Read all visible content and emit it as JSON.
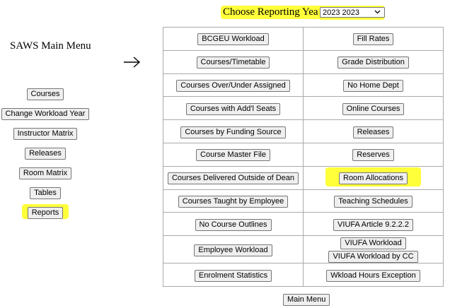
{
  "header": {
    "title": "Choose Reporting Year :",
    "year_select": "2023 2023"
  },
  "sidebar": {
    "title": "SAWS Main Menu",
    "buttons": [
      "Courses",
      "Change Workload Year",
      "Instructor Matrix",
      "Releases",
      "Room Matrix",
      "Tables",
      "Reports"
    ]
  },
  "table": {
    "rows": [
      [
        [
          "BCGEU Workload"
        ],
        [
          "Fill Rates"
        ]
      ],
      [
        [
          "Courses/Timetable"
        ],
        [
          "Grade Distribution"
        ]
      ],
      [
        [
          "Courses Over/Under Assigned"
        ],
        [
          "No Home Dept"
        ]
      ],
      [
        [
          "Courses with Add'l Seats"
        ],
        [
          "Online Courses"
        ]
      ],
      [
        [
          "Courses by Funding Source"
        ],
        [
          "Releases"
        ]
      ],
      [
        [
          "Course Master File"
        ],
        [
          "Reserves"
        ]
      ],
      [
        [
          "Courses Delivered Outside of Dean"
        ],
        [
          "Room Allocations"
        ]
      ],
      [
        [
          "Courses Taught by Employee"
        ],
        [
          "Teaching Schedules"
        ]
      ],
      [
        [
          "No Course Outlines"
        ],
        [
          "VIUFA Article 9.2.2.2"
        ]
      ],
      [
        [
          "Employee Workload"
        ],
        [
          "VIUFA Workload",
          "VIUFA Workload by CC"
        ]
      ],
      [
        [
          "Enrolment Statistics"
        ],
        [
          "Wkload Hours Exception"
        ]
      ]
    ]
  },
  "footer": {
    "button": "Main Menu"
  }
}
